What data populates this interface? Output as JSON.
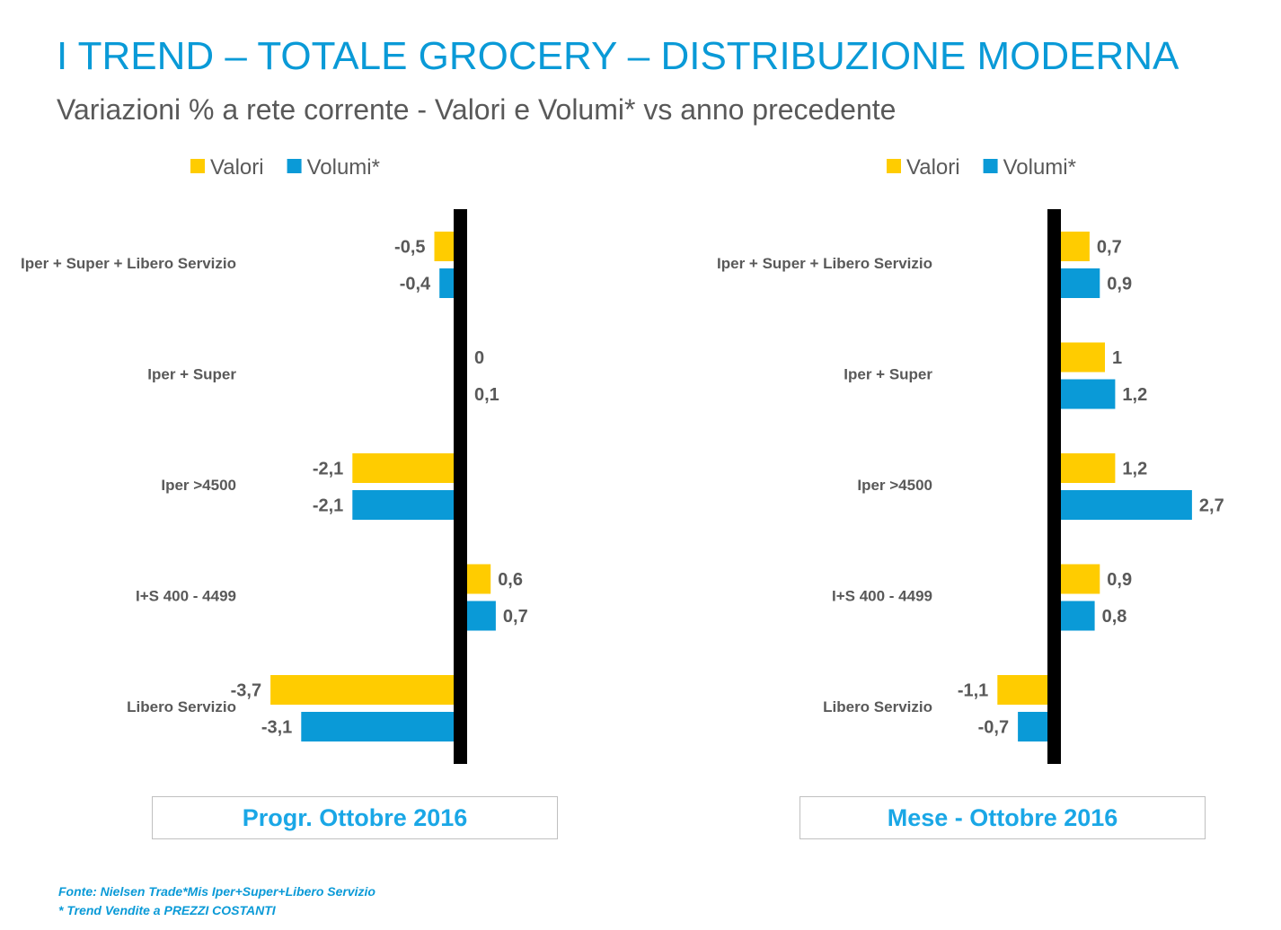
{
  "title": "I TREND – TOTALE GROCERY – DISTRIBUZIONE MODERNA",
  "subtitle": "Variazioni % a rete corrente - Valori e Volumi* vs anno precedente",
  "colors": {
    "valori": "#ffcc00",
    "volumi": "#0a9ad7",
    "axis": "#000000",
    "title": "#0a9ad7"
  },
  "chart_data": [
    {
      "type": "bar",
      "orientation": "horizontal",
      "caption": "Progr. Ottobre 2016",
      "categories": [
        "Iper + Super + Libero Servizio",
        "Iper + Super",
        "Iper >4500",
        "I+S 400 - 4499",
        "Libero Servizio"
      ],
      "series": [
        {
          "name": "Valori",
          "values": [
            -0.5,
            0,
            -2.1,
            0.6,
            -3.7
          ],
          "labels": [
            "-0,5",
            "0",
            "-2,1",
            "0,6",
            "-3,7"
          ]
        },
        {
          "name": "Volumi*",
          "values": [
            -0.4,
            0.1,
            -2.1,
            0.7,
            -3.1
          ],
          "labels": [
            "-0,4",
            "0,1",
            "-2,1",
            "0,7",
            "-3,1"
          ]
        }
      ],
      "legend": "top",
      "grid": false
    },
    {
      "type": "bar",
      "orientation": "horizontal",
      "caption": "Mese - Ottobre 2016",
      "categories": [
        "Iper + Super + Libero Servizio",
        "Iper + Super",
        "Iper >4500",
        "I+S 400 - 4499",
        "Libero Servizio"
      ],
      "series": [
        {
          "name": "Valori",
          "values": [
            0.7,
            1,
            1.2,
            0.9,
            -1.1
          ],
          "labels": [
            "0,7",
            "1",
            "1,2",
            "0,9",
            "-1,1"
          ]
        },
        {
          "name": "Volumi*",
          "values": [
            0.9,
            1.2,
            2.7,
            0.8,
            -0.7
          ],
          "labels": [
            "0,9",
            "1,2",
            "2,7",
            "0,8",
            "-0,7"
          ]
        }
      ],
      "legend": "top",
      "grid": false
    }
  ],
  "footer": {
    "source": "Fonte: Nielsen Trade*Mis Iper+Super+Libero Servizio",
    "note": "* Trend Vendite a PREZZI COSTANTI"
  }
}
